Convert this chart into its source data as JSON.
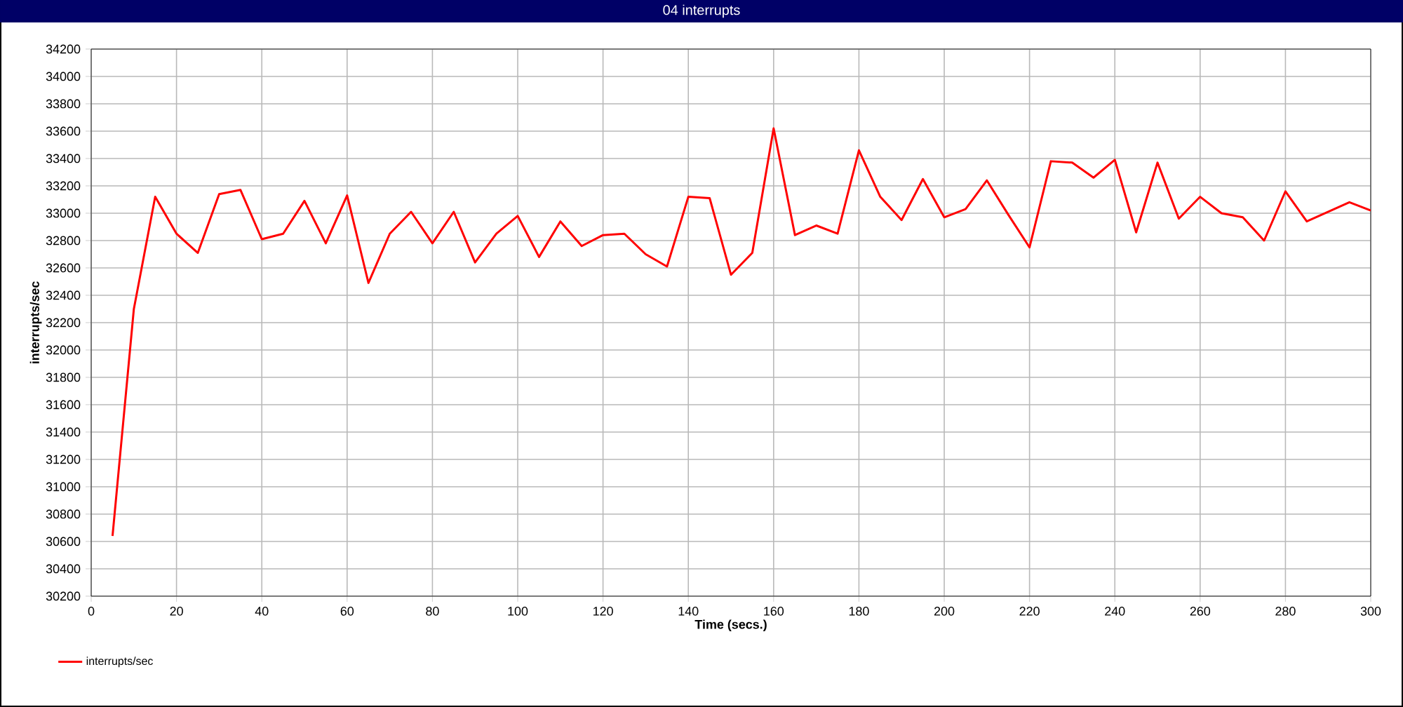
{
  "chart_data": {
    "type": "line",
    "title": "04 interrupts",
    "xlabel": "Time (secs.)",
    "ylabel": "interrupts/sec",
    "x": [
      5,
      10,
      15,
      20,
      25,
      30,
      35,
      40,
      45,
      50,
      55,
      60,
      65,
      70,
      75,
      80,
      85,
      90,
      95,
      100,
      105,
      110,
      115,
      120,
      125,
      130,
      135,
      140,
      145,
      150,
      155,
      160,
      165,
      170,
      175,
      180,
      185,
      190,
      195,
      200,
      205,
      210,
      215,
      220,
      225,
      230,
      235,
      240,
      245,
      250,
      255,
      260,
      265,
      270,
      275,
      280,
      285,
      290,
      295,
      300
    ],
    "series": [
      {
        "name": "interrupts/sec",
        "color": "#ff0000",
        "values": [
          30640,
          32300,
          33120,
          32850,
          32710,
          33140,
          33170,
          32810,
          32850,
          33090,
          32780,
          33130,
          32490,
          32850,
          33010,
          32780,
          33010,
          32640,
          32850,
          32980,
          32680,
          32940,
          32760,
          32840,
          32850,
          32700,
          32610,
          33120,
          33110,
          32550,
          32710,
          33620,
          32840,
          32910,
          32850,
          33460,
          33120,
          32950,
          33250,
          32970,
          33030,
          33240,
          32990,
          32750,
          33380,
          33370,
          33260,
          33390,
          32860,
          33370,
          32960,
          33120,
          33000,
          32970,
          32800,
          33160,
          32940,
          33010,
          33080,
          33020
        ]
      }
    ],
    "xlim": [
      0,
      300
    ],
    "ylim": [
      30200,
      34200
    ],
    "xticks": [
      0,
      20,
      40,
      60,
      80,
      100,
      120,
      140,
      160,
      180,
      200,
      220,
      240,
      260,
      280,
      300
    ],
    "yticks": [
      30200,
      30400,
      30600,
      30800,
      31000,
      31200,
      31400,
      31600,
      31800,
      32000,
      32200,
      32400,
      32600,
      32800,
      33000,
      33200,
      33400,
      33600,
      33800,
      34000,
      34200
    ],
    "grid": true,
    "legend": "bottom left",
    "marker": "none",
    "line_style": "solid"
  }
}
